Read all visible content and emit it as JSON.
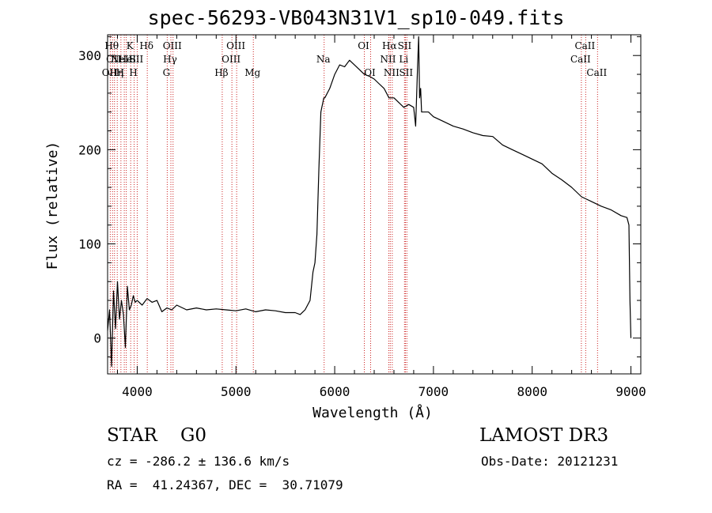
{
  "chart_data": {
    "type": "line",
    "title": "spec-56293-VB043N31V1_sp10-049.fits",
    "xlabel": "Wavelength (Å)",
    "ylabel": "Flux (relative)",
    "xlim": [
      3700,
      9100
    ],
    "ylim": [
      -38,
      322
    ],
    "x_ticks": [
      "4000",
      "5000",
      "6000",
      "7000",
      "8000",
      "9000"
    ],
    "y_ticks": [
      "0",
      "100",
      "200",
      "300"
    ],
    "grid": false,
    "line_color": "#000000",
    "marker_color": "#cc2222",
    "series": [
      {
        "x": [
          3700,
          3720,
          3740,
          3760,
          3780,
          3800,
          3820,
          3840,
          3860,
          3880,
          3900,
          3920,
          3940,
          3960,
          3980,
          4000,
          4050,
          4100,
          4150,
          4200,
          4250,
          4300,
          4350,
          4400,
          4500,
          4600,
          4700,
          4800,
          4900,
          5000,
          5100,
          5200,
          5300,
          5400,
          5500,
          5600,
          5650,
          5700,
          5750,
          5780,
          5800,
          5820,
          5840,
          5860,
          5870,
          5880,
          5890,
          5900,
          5950,
          6000,
          6050,
          6100,
          6150,
          6200,
          6250,
          6300,
          6350,
          6400,
          6450,
          6500,
          6550,
          6600,
          6650,
          6700,
          6750,
          6800,
          6820,
          6840,
          6850,
          6860,
          6870,
          6880,
          6900,
          6950,
          7000,
          7100,
          7200,
          7300,
          7400,
          7500,
          7600,
          7700,
          7800,
          7900,
          8000,
          8100,
          8200,
          8300,
          8400,
          8500,
          8600,
          8700,
          8800,
          8900,
          8960,
          8980,
          8990,
          9000
        ],
        "y": [
          8,
          30,
          -30,
          50,
          10,
          60,
          20,
          40,
          25,
          -10,
          55,
          30,
          35,
          45,
          38,
          40,
          35,
          42,
          38,
          40,
          28,
          32,
          30,
          35,
          30,
          32,
          30,
          31,
          30,
          29,
          31,
          28,
          30,
          29,
          27,
          27,
          25,
          30,
          40,
          70,
          80,
          110,
          180,
          240,
          245,
          250,
          255,
          255,
          265,
          280,
          290,
          288,
          295,
          290,
          285,
          280,
          278,
          275,
          270,
          265,
          255,
          255,
          250,
          245,
          248,
          245,
          225,
          290,
          320,
          255,
          265,
          240,
          240,
          240,
          235,
          230,
          225,
          222,
          218,
          215,
          214,
          205,
          200,
          195,
          190,
          185,
          175,
          168,
          160,
          150,
          145,
          140,
          136,
          130,
          128,
          120,
          40,
          0
        ]
      }
    ],
    "line_markers": [
      {
        "wl": 3727,
        "label": "OII",
        "row": 3
      },
      {
        "wl": 3750,
        "label": "Hθ",
        "row": 1
      },
      {
        "wl": 3770,
        "label": "OII",
        "row": 2
      },
      {
        "wl": 3798,
        "label": "Hη",
        "row": 3
      },
      {
        "wl": 3835,
        "label": "H",
        "row": 3
      },
      {
        "wl": 3869,
        "label": "NeIII",
        "row": 2
      },
      {
        "wl": 3889,
        "label": "He",
        "row": 2
      },
      {
        "wl": 3934,
        "label": "K",
        "row": 1
      },
      {
        "wl": 3969,
        "label": "H",
        "row": 3
      },
      {
        "wl": 4000,
        "label": "SII",
        "row": 2
      },
      {
        "wl": 4102,
        "label": "Hδ",
        "row": 1
      },
      {
        "wl": 4304,
        "label": "G",
        "row": 3
      },
      {
        "wl": 4341,
        "label": "Hγ",
        "row": 2
      },
      {
        "wl": 4363,
        "label": "OIII",
        "row": 1
      },
      {
        "wl": 4861,
        "label": "Hβ",
        "row": 3
      },
      {
        "wl": 4959,
        "label": "OIII",
        "row": 2
      },
      {
        "wl": 5007,
        "label": "OIII",
        "row": 1
      },
      {
        "wl": 5176,
        "label": "Mg",
        "row": 3
      },
      {
        "wl": 5893,
        "label": "Na",
        "row": 2
      },
      {
        "wl": 6300,
        "label": "OI",
        "row": 1
      },
      {
        "wl": 6364,
        "label": "OI",
        "row": 3
      },
      {
        "wl": 6548,
        "label": "NII",
        "row": 2
      },
      {
        "wl": 6563,
        "label": "Hα",
        "row": 1
      },
      {
        "wl": 6583,
        "label": "NII",
        "row": 3
      },
      {
        "wl": 6707,
        "label": "Li",
        "row": 2
      },
      {
        "wl": 6716,
        "label": "SII",
        "row": 1
      },
      {
        "wl": 6731,
        "label": "SII",
        "row": 3
      },
      {
        "wl": 8498,
        "label": "CaII",
        "row": 2
      },
      {
        "wl": 8542,
        "label": "CaII",
        "row": 1
      },
      {
        "wl": 8662,
        "label": "CaII",
        "row": 3
      }
    ]
  },
  "info": {
    "class": "STAR    G0",
    "survey": "LAMOST DR3",
    "cz": "cz = -286.2 ± 136.6 km/s",
    "obs_date": "Obs-Date: 20121231",
    "radec": "RA =  41.24367, DEC =  30.71079"
  }
}
